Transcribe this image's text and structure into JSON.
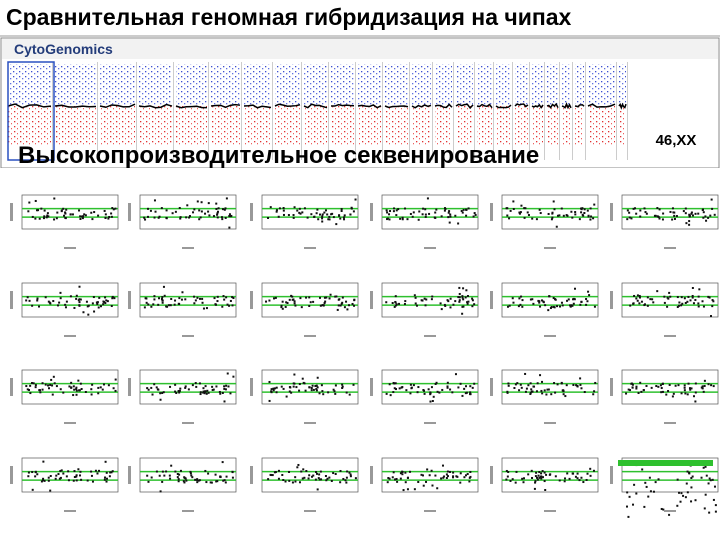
{
  "header": {
    "title": "Сравнительная геномная гибридизация на чипах"
  },
  "array_screenshot": {
    "logo": "CytoGenomics",
    "karyotype": "46,XX"
  },
  "sequencing_screenshot": {
    "title": "Высокопроизводительное секвенирование"
  }
}
